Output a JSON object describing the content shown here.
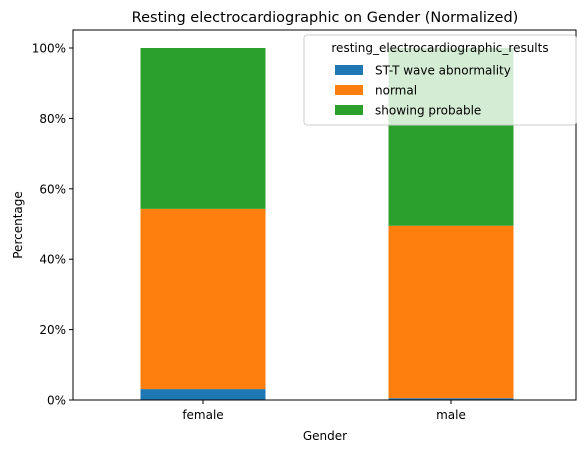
{
  "chart_data": {
    "type": "bar",
    "stacked": true,
    "title": "Resting electrocardiographic on Gender (Normalized)",
    "xlabel": "Gender",
    "ylabel": "Percentage",
    "categories": [
      "female",
      "male"
    ],
    "ylim": [
      0,
      100
    ],
    "yticks": [
      0,
      20,
      40,
      60,
      80,
      100
    ],
    "ytick_labels": [
      "0%",
      "20%",
      "40%",
      "60%",
      "80%",
      "100%"
    ],
    "legend_title": "resting_electrocardiographic_results",
    "legend_position": "top-right",
    "grid": false,
    "series": [
      {
        "name": "ST-T wave abnormality",
        "color": "#1f77b4",
        "values": [
          3.1,
          0.5
        ]
      },
      {
        "name": "normal",
        "color": "#ff7f0e",
        "values": [
          51.2,
          49.0
        ]
      },
      {
        "name": "showing probable",
        "color": "#2ca02c",
        "values": [
          45.7,
          50.5
        ]
      }
    ]
  }
}
